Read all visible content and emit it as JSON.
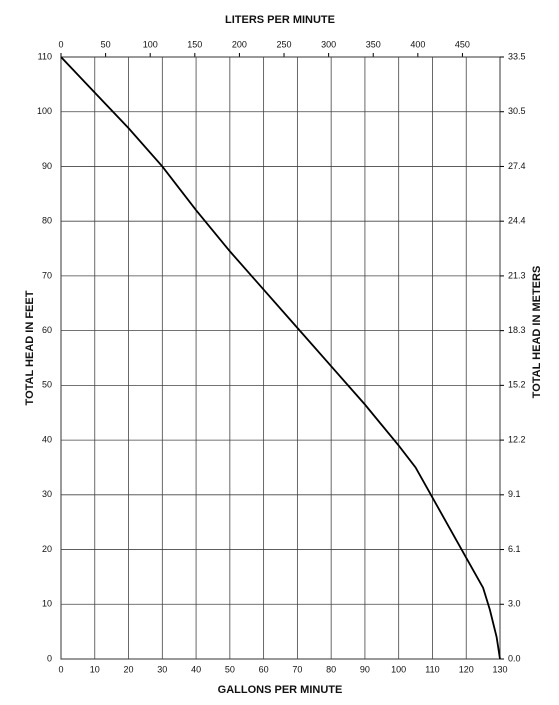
{
  "chart_data": {
    "type": "line",
    "xlabel": "GALLONS PER MINUTE",
    "x2label": "LITERS PER MINUTE",
    "ylabel": "TOTAL HEAD IN FEET",
    "y2label": "TOTAL HEAD IN METERS",
    "x": [
      0,
      10,
      20,
      30,
      40,
      50,
      60,
      70,
      80,
      90,
      100,
      105,
      110,
      115,
      120,
      125,
      127,
      129,
      130
    ],
    "values": [
      110,
      103.5,
      97,
      90,
      82,
      74.5,
      67.5,
      60.5,
      53.5,
      46.5,
      39,
      35,
      29.5,
      24,
      18.5,
      13,
      9,
      4,
      0
    ],
    "color": "#000000",
    "xlim": [
      0,
      130
    ],
    "xticks": [
      0,
      10,
      20,
      30,
      40,
      50,
      60,
      70,
      80,
      90,
      100,
      110,
      120,
      130
    ],
    "x2lim": [
      0,
      492.1
    ],
    "x2ticks": [
      0,
      50,
      100,
      150,
      200,
      250,
      300,
      350,
      400,
      450
    ],
    "ylim": [
      0,
      110
    ],
    "yticks": [
      0,
      10,
      20,
      30,
      40,
      50,
      60,
      70,
      80,
      90,
      100,
      110
    ],
    "y2lim": [
      0,
      33.528
    ],
    "y2ticks": [
      {
        "value": 0,
        "label": "0.0"
      },
      {
        "value": 3.048,
        "label": "3.0"
      },
      {
        "value": 6.096,
        "label": "6.1"
      },
      {
        "value": 9.144,
        "label": "9.1"
      },
      {
        "value": 12.192,
        "label": "12.2"
      },
      {
        "value": 15.24,
        "label": "15.2"
      },
      {
        "value": 18.288,
        "label": "18.3"
      },
      {
        "value": 21.336,
        "label": "21.3"
      },
      {
        "value": 24.384,
        "label": "24.4"
      },
      {
        "value": 27.432,
        "label": "27.4"
      },
      {
        "value": 30.48,
        "label": "30.5"
      },
      {
        "value": 33.528,
        "label": "33.5"
      }
    ],
    "grid": true
  }
}
